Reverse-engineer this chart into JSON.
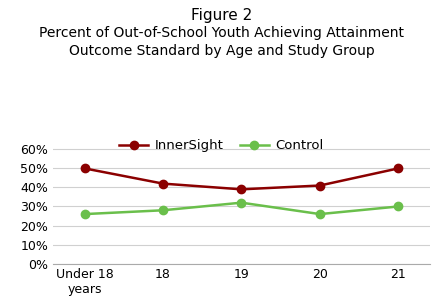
{
  "title_line1": "Figure 2",
  "title_line2": "Percent of Out-of-School Youth Achieving Attainment\nOutcome Standard by Age and Study Group",
  "x_labels": [
    "Under 18\nyears",
    "18",
    "19",
    "20",
    "21"
  ],
  "x_positions": [
    0,
    1,
    2,
    3,
    4
  ],
  "innersight_values": [
    0.5,
    0.42,
    0.39,
    0.41,
    0.5
  ],
  "control_values": [
    0.26,
    0.28,
    0.32,
    0.26,
    0.3
  ],
  "innersight_color": "#8B0000",
  "control_color": "#6ABF4B",
  "ylim": [
    0,
    0.7
  ],
  "yticks": [
    0.0,
    0.1,
    0.2,
    0.3,
    0.4,
    0.5,
    0.6
  ],
  "background_color": "#ffffff",
  "legend_innersight": "InnerSight",
  "legend_control": "Control",
  "marker_size": 6,
  "line_width": 1.8,
  "title_fontsize": 11,
  "subtitle_fontsize": 10,
  "legend_fontsize": 9.5,
  "tick_fontsize": 9
}
